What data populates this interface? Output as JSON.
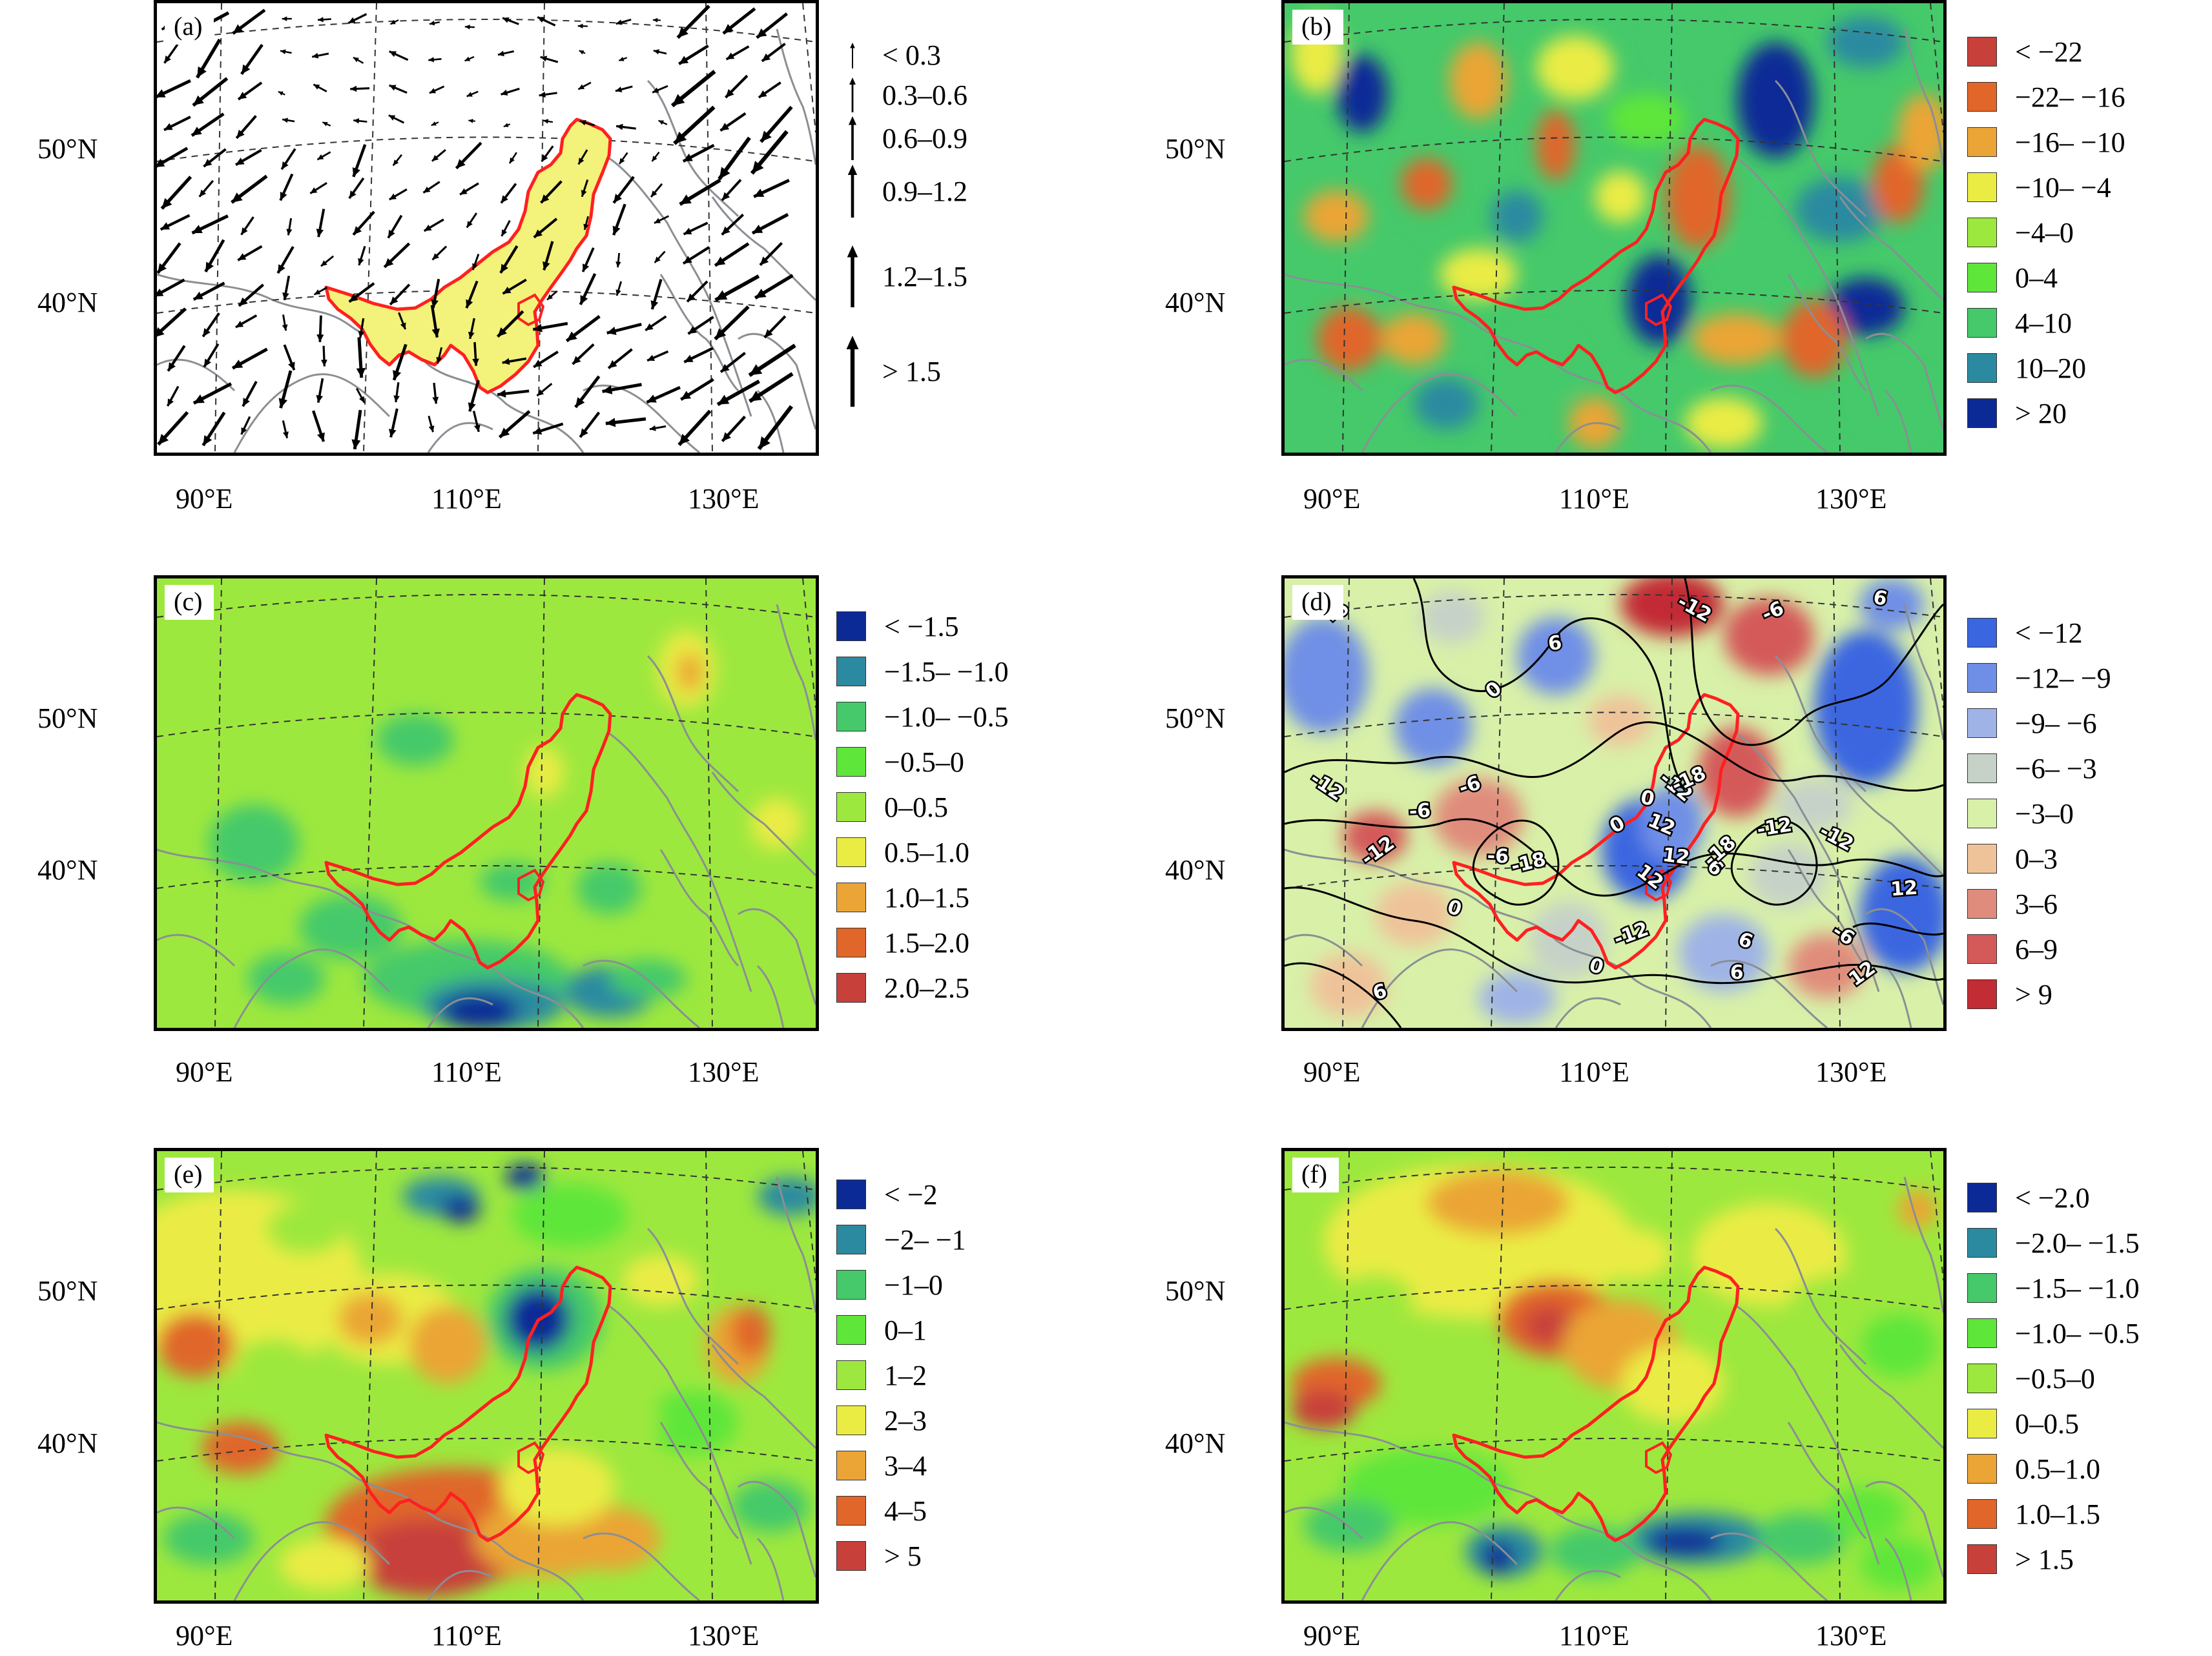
{
  "panels": [
    {
      "id": "a",
      "label": "(a)",
      "type": "vector",
      "lat_labels": [
        "50°N",
        "40°N"
      ],
      "lon_labels": [
        "90°E",
        "110°E",
        "130°E"
      ],
      "legend": [
        {
          "label": "< 0.3",
          "size": 1
        },
        {
          "label": "0.3–0.6",
          "size": 2
        },
        {
          "label": "0.6–0.9",
          "size": 3
        },
        {
          "label": "0.9–1.2",
          "size": 4
        },
        {
          "label": "1.2–1.5",
          "size": 5
        },
        {
          "label": "> 1.5",
          "size": 6
        }
      ]
    },
    {
      "id": "b",
      "label": "(b)",
      "type": "filled",
      "lat_labels": [
        "50°N",
        "40°N"
      ],
      "lon_labels": [
        "90°E",
        "110°E",
        "130°E"
      ],
      "legend": [
        {
          "label": "< −22",
          "color": "#c8403a"
        },
        {
          "label": "−22– −16",
          "color": "#e0662a"
        },
        {
          "label": "−16– −10",
          "color": "#eaa536"
        },
        {
          "label": "−10– −4",
          "color": "#eaec44"
        },
        {
          "label": "−4–0",
          "color": "#9de83e"
        },
        {
          "label": "0–4",
          "color": "#5fe63a"
        },
        {
          "label": "4–10",
          "color": "#45c96a"
        },
        {
          "label": "10–20",
          "color": "#2b8aa0"
        },
        {
          "label": "> 20",
          "color": "#0b2a96"
        }
      ]
    },
    {
      "id": "c",
      "label": "(c)",
      "type": "filled",
      "lat_labels": [
        "50°N",
        "40°N"
      ],
      "lon_labels": [
        "90°E",
        "110°E",
        "130°E"
      ],
      "legend": [
        {
          "label": "< −1.5",
          "color": "#0b2a96"
        },
        {
          "label": "−1.5– −1.0",
          "color": "#2b8aa0"
        },
        {
          "label": "−1.0– −0.5",
          "color": "#45c96a"
        },
        {
          "label": "−0.5–0",
          "color": "#5fe63a"
        },
        {
          "label": "0–0.5",
          "color": "#9de83e"
        },
        {
          "label": "0.5–1.0",
          "color": "#eaec44"
        },
        {
          "label": "1.0–1.5",
          "color": "#eaa536"
        },
        {
          "label": "1.5–2.0",
          "color": "#e0662a"
        },
        {
          "label": "2.0–2.5",
          "color": "#c8403a"
        }
      ]
    },
    {
      "id": "d",
      "label": "(d)",
      "type": "filled-contour",
      "lat_labels": [
        "50°N",
        "40°N"
      ],
      "lon_labels": [
        "90°E",
        "110°E",
        "130°E"
      ],
      "contour_labels": [
        "-6",
        "6",
        "-12",
        "-6",
        "6",
        "0",
        "-6",
        "-12",
        "-6",
        "0",
        "-12",
        "-6",
        "-12",
        "-18",
        "12",
        "0",
        "12",
        "6",
        "-12",
        "-12",
        "-18",
        "0",
        "-18",
        "12",
        "-6",
        "-12",
        "0",
        "12",
        "6",
        "12",
        "6",
        "6"
      ],
      "legend": [
        {
          "label": "< −12",
          "color": "#3a66e0"
        },
        {
          "label": "−12– −9",
          "color": "#6f8fe6"
        },
        {
          "label": "−9– −6",
          "color": "#9fb3e6"
        },
        {
          "label": "−6– −3",
          "color": "#c6d2c8"
        },
        {
          "label": "−3–0",
          "color": "#d8f0a8"
        },
        {
          "label": "0–3",
          "color": "#efc39a"
        },
        {
          "label": "3–6",
          "color": "#e08c7c"
        },
        {
          "label": "6–9",
          "color": "#d45a5a"
        },
        {
          "label": "> 9",
          "color": "#c22c34"
        }
      ]
    },
    {
      "id": "e",
      "label": "(e)",
      "type": "filled",
      "lat_labels": [
        "50°N",
        "40°N"
      ],
      "lon_labels": [
        "90°E",
        "110°E",
        "130°E"
      ],
      "legend": [
        {
          "label": "< −2",
          "color": "#0b2a96"
        },
        {
          "label": "−2– −1",
          "color": "#2b8aa0"
        },
        {
          "label": "−1–0",
          "color": "#45c96a"
        },
        {
          "label": "0–1",
          "color": "#5fe63a"
        },
        {
          "label": "1–2",
          "color": "#9de83e"
        },
        {
          "label": "2–3",
          "color": "#eaec44"
        },
        {
          "label": "3–4",
          "color": "#eaa536"
        },
        {
          "label": "4–5",
          "color": "#e0662a"
        },
        {
          "label": "> 5",
          "color": "#c8403a"
        }
      ]
    },
    {
      "id": "f",
      "label": "(f)",
      "type": "filled",
      "lat_labels": [
        "50°N",
        "40°N"
      ],
      "lon_labels": [
        "90°E",
        "110°E",
        "130°E"
      ],
      "legend": [
        {
          "label": "< −2.0",
          "color": "#0b2a96"
        },
        {
          "label": "−2.0– −1.5",
          "color": "#2b8aa0"
        },
        {
          "label": "−1.5– −1.0",
          "color": "#45c96a"
        },
        {
          "label": "−1.0– −0.5",
          "color": "#5fe63a"
        },
        {
          "label": "−0.5–0",
          "color": "#9de83e"
        },
        {
          "label": "0–0.5",
          "color": "#eaec44"
        },
        {
          "label": "0.5–1.0",
          "color": "#eaa536"
        },
        {
          "label": "1.0–1.5",
          "color": "#e0662a"
        },
        {
          "label": "> 1.5",
          "color": "#c8403a"
        }
      ]
    }
  ],
  "colors": {
    "region_outline": "#ff2020",
    "region_fill_a": "#f3f27a",
    "borders": "#8a8f94",
    "grid": "#333333"
  }
}
